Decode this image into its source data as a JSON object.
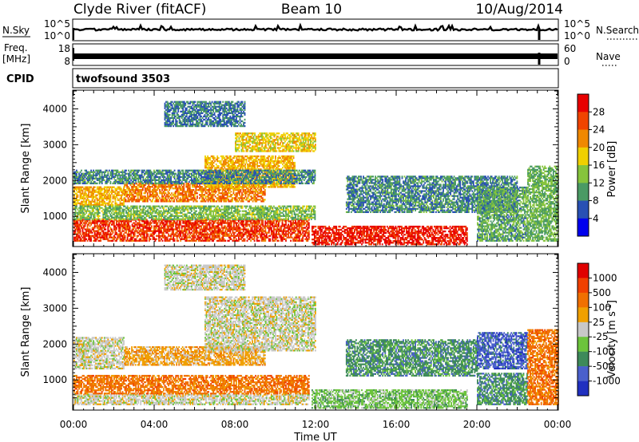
{
  "header": {
    "station": "Clyde River (fitACF)",
    "beam": "Beam 10",
    "date": "10/Aug/2014"
  },
  "noise_panel": {
    "left_label": "N.Sky",
    "right_label": "N.Search",
    "left_ticks": [
      "10^5",
      "10^0"
    ],
    "right_ticks": [
      "10^5",
      "10^0"
    ]
  },
  "freq_panel": {
    "left_label_top": "Freq.",
    "left_label_bottom": "[MHz]",
    "right_label": "Nave",
    "left_ticks": [
      "18",
      "8"
    ],
    "right_ticks": [
      "60",
      "0"
    ]
  },
  "cpid_panel": {
    "label": "CPID",
    "value": "twofsound 3503"
  },
  "chart_data": [
    {
      "type": "heatmap",
      "parameter": "Power",
      "ylabel": "Slant Range [km]",
      "yticks": [
        "4000",
        "3000",
        "2000",
        "1000"
      ],
      "ylim": [
        180,
        4500
      ],
      "xlim": [
        0,
        24
      ],
      "colorbar_label": "Power [dB]",
      "colorbar_ticks": [
        "28",
        "24",
        "20",
        "16",
        "12",
        "8",
        "4"
      ],
      "colorbar_colors": [
        "#0000ee",
        "#2850b4",
        "#4a9a64",
        "#86c43c",
        "#f0d000",
        "#f08800",
        "#f04400",
        "#e80000"
      ],
      "scale_range": [
        0,
        32
      ],
      "regions": [
        {
          "t0": 0.0,
          "t1": 11.7,
          "r0": 300,
          "r1": 900,
          "v": 27
        },
        {
          "t0": 2.5,
          "t1": 9.5,
          "r0": 1400,
          "r1": 1900,
          "v": 23
        },
        {
          "t0": 0.0,
          "t1": 2.5,
          "r0": 1300,
          "r1": 1800,
          "v": 20
        },
        {
          "t0": 6.5,
          "t1": 11.0,
          "r0": 1800,
          "r1": 2700,
          "v": 20
        },
        {
          "t0": 8.0,
          "t1": 12.0,
          "r0": 2800,
          "r1": 3300,
          "v": 18
        },
        {
          "t0": 4.5,
          "t1": 8.5,
          "r0": 3500,
          "r1": 4200,
          "v": 8
        },
        {
          "t0": 11.8,
          "t1": 19.5,
          "r0": 200,
          "r1": 700,
          "v": 29
        },
        {
          "t0": 13.5,
          "t1": 22.0,
          "r0": 1100,
          "r1": 2100,
          "v": 9
        },
        {
          "t0": 20.0,
          "t1": 22.5,
          "r0": 300,
          "r1": 1800,
          "v": 11
        },
        {
          "t0": 22.5,
          "t1": 24.0,
          "r0": 300,
          "r1": 2400,
          "v": 12
        },
        {
          "t0": 0.0,
          "t1": 12.0,
          "r0": 900,
          "r1": 1300,
          "v": 13
        },
        {
          "t0": 0.0,
          "t1": 12.0,
          "r0": 1900,
          "r1": 2300,
          "v": 9
        }
      ]
    },
    {
      "type": "heatmap",
      "parameter": "Velocity",
      "ylabel": "Slant Range [km]",
      "yticks": [
        "4000",
        "3000",
        "2000",
        "1000"
      ],
      "ylim": [
        180,
        4500
      ],
      "xlim": [
        0,
        24
      ],
      "xticks": [
        "00:00",
        "04:00",
        "08:00",
        "12:00",
        "16:00",
        "20:00",
        "00:00"
      ],
      "xlabel": "Time UT",
      "colorbar_label": "Velocity [m s^-1]",
      "colorbar_ticks": [
        "1000",
        "500",
        "100",
        "25",
        "-25",
        "-100",
        "-500",
        "-1000"
      ],
      "colorbar_colors": [
        "#2030c0",
        "#4a60cc",
        "#3e8a5a",
        "#6cc43c",
        "#c8c8c8",
        "#f0a000",
        "#f07000",
        "#f04000",
        "#e00000"
      ],
      "scale_range": [
        0,
        9
      ],
      "regions": [
        {
          "t0": 0.0,
          "t1": 11.7,
          "r0": 300,
          "r1": 600,
          "v": 4.5
        },
        {
          "t0": 0.0,
          "t1": 11.7,
          "r0": 600,
          "r1": 1100,
          "v": 6.5
        },
        {
          "t0": 2.5,
          "t1": 9.5,
          "r0": 1400,
          "r1": 1900,
          "v": 5.5
        },
        {
          "t0": 0.0,
          "t1": 2.5,
          "r0": 1300,
          "r1": 2200,
          "v": 4.5
        },
        {
          "t0": 6.5,
          "t1": 12.0,
          "r0": 1800,
          "r1": 3300,
          "v": 4.5
        },
        {
          "t0": 4.5,
          "t1": 8.5,
          "r0": 3500,
          "r1": 4200,
          "v": 4.5
        },
        {
          "t0": 11.8,
          "t1": 19.5,
          "r0": 200,
          "r1": 700,
          "v": 3.5
        },
        {
          "t0": 13.5,
          "t1": 20.0,
          "r0": 1100,
          "r1": 2100,
          "v": 2.5
        },
        {
          "t0": 20.0,
          "t1": 22.5,
          "r0": 1300,
          "r1": 2300,
          "v": 1.5
        },
        {
          "t0": 20.0,
          "t1": 22.5,
          "r0": 300,
          "r1": 1200,
          "v": 2.5
        },
        {
          "t0": 22.5,
          "t1": 24.0,
          "r0": 300,
          "r1": 2400,
          "v": 6.5
        }
      ]
    }
  ]
}
